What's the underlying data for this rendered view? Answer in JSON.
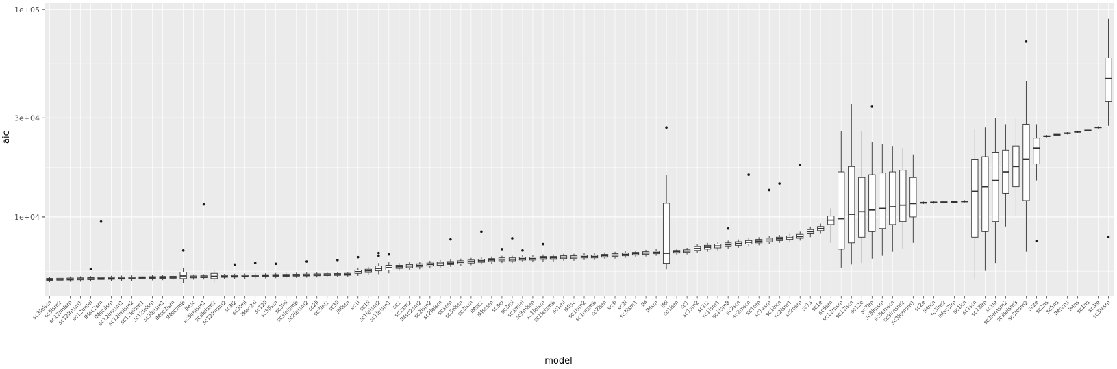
{
  "colors": {
    "panel_bg": "#EBEBEB",
    "grid": "#FFFFFF",
    "box_stroke": "#333333",
    "box_fill": "#FFFFFF",
    "outlier": "#1A1A1A",
    "tick_text": "#4D4D4D",
    "tick_mark": "#333333"
  },
  "chart_data": {
    "type": "boxplot",
    "title": "",
    "xlabel": "model",
    "ylabel": "aic",
    "yscale": "log",
    "ylim": [
      4140,
      107000
    ],
    "legend": "none",
    "grid": "on",
    "yticks": [
      {
        "value": 10000,
        "label": "1e+04"
      },
      {
        "value": 30000,
        "label": "3e+04"
      },
      {
        "value": 100000,
        "label": "1e+05"
      }
    ],
    "y_minor": [
      5477,
      17321,
      54772
    ],
    "box_format": [
      "label",
      "whisker_low",
      "q1",
      "median",
      "q3",
      "whisker_high",
      "outliers"
    ],
    "boxes": [
      [
        "sc3lelsm",
        4850,
        4950,
        5000,
        5060,
        5150,
        []
      ],
      [
        "sc3lsm2",
        4860,
        4960,
        5010,
        5070,
        5160,
        []
      ],
      [
        "sc12lmlsm",
        4870,
        4970,
        5020,
        5080,
        5170,
        []
      ],
      [
        "sc12lmsm1",
        4880,
        4980,
        5030,
        5090,
        5180,
        []
      ],
      [
        "sc12lmlel",
        4890,
        4990,
        5040,
        5100,
        5190,
        [
          5600
        ]
      ],
      [
        "lMsc2sm",
        4900,
        5000,
        5050,
        5110,
        5200,
        [
          9500
        ]
      ],
      [
        "lMsc3sm",
        4910,
        5010,
        5060,
        5120,
        5210,
        []
      ],
      [
        "sc12lmlsm1",
        4920,
        5020,
        5070,
        5130,
        5220,
        []
      ],
      [
        "sc12lmlsm2",
        4930,
        5030,
        5080,
        5140,
        5230,
        []
      ],
      [
        "sc12lelsm1",
        4940,
        5040,
        5090,
        5150,
        5240,
        []
      ],
      [
        "sc12lelsm",
        4950,
        5050,
        5100,
        5160,
        5250,
        []
      ],
      [
        "sc3lelsm1",
        4960,
        5060,
        5110,
        5170,
        5260,
        []
      ],
      [
        "lMsc3lsm",
        4970,
        5070,
        5120,
        5180,
        5270,
        []
      ],
      [
        "lMscsmB",
        4800,
        5050,
        5200,
        5420,
        5700,
        [
          6900
        ]
      ],
      [
        "lMsc",
        4990,
        5090,
        5140,
        5200,
        5290,
        []
      ],
      [
        "sc3lmlsm1",
        5000,
        5100,
        5150,
        5210,
        5300,
        [
          11500
        ]
      ],
      [
        "sc3lelsm2",
        4850,
        5050,
        5180,
        5350,
        5550,
        []
      ],
      [
        "sc12lmsm2",
        5020,
        5120,
        5170,
        5230,
        5320,
        []
      ],
      [
        "sc3l2",
        5030,
        5130,
        5180,
        5240,
        5330,
        [
          5900
        ]
      ],
      [
        "sc3lml",
        5040,
        5140,
        5190,
        5250,
        5340,
        []
      ],
      [
        "lMsc2sl",
        5050,
        5150,
        5200,
        5260,
        5350,
        [
          6000
        ]
      ],
      [
        "sc12ll",
        5060,
        5160,
        5210,
        5270,
        5360,
        []
      ],
      [
        "sc3lfsm",
        5070,
        5170,
        5220,
        5280,
        5370,
        [
          5950
        ]
      ],
      [
        "sc3lel",
        5080,
        5180,
        5230,
        5290,
        5380,
        []
      ],
      [
        "sc3lelsmB",
        5090,
        5190,
        5240,
        5300,
        5390,
        []
      ],
      [
        "sc2lelsm2",
        5100,
        5200,
        5250,
        5310,
        5400,
        [
          6100
        ]
      ],
      [
        "sc2ll",
        5110,
        5210,
        5260,
        5320,
        5410,
        []
      ],
      [
        "sc3lel2",
        5120,
        5220,
        5270,
        5330,
        5420,
        []
      ],
      [
        "sc3ll",
        5130,
        5230,
        5280,
        5340,
        5430,
        [
          6200
        ]
      ],
      [
        "lMlsm",
        5140,
        5240,
        5290,
        5350,
        5440,
        []
      ],
      [
        "sc1l",
        5200,
        5350,
        5450,
        5550,
        5700,
        [
          6400
        ]
      ],
      [
        "sc1ll",
        5250,
        5400,
        5500,
        5600,
        5750,
        []
      ],
      [
        "sc1lelsm2",
        5300,
        5500,
        5650,
        5800,
        6000,
        [
          6500,
          6700
        ]
      ],
      [
        "sc1lelsm1",
        5350,
        5550,
        5700,
        5850,
        6050,
        [
          6600
        ]
      ],
      [
        "sc2",
        5500,
        5650,
        5750,
        5850,
        6000,
        []
      ],
      [
        "sc2sm2",
        5550,
        5700,
        5800,
        5900,
        6050,
        []
      ],
      [
        "lMsc2sm2",
        5600,
        5750,
        5850,
        5950,
        6100,
        []
      ],
      [
        "sc2lsm2",
        5650,
        5800,
        5900,
        6000,
        6150,
        []
      ],
      [
        "sc2lelsm",
        5700,
        5850,
        5950,
        6050,
        6200,
        []
      ],
      [
        "sc3em",
        5750,
        5900,
        6000,
        6100,
        6250,
        [
          7800
        ]
      ],
      [
        "sc3elsm",
        5800,
        5950,
        6050,
        6150,
        6300,
        []
      ],
      [
        "sc3lsm",
        5850,
        6000,
        6100,
        6200,
        6350,
        []
      ],
      [
        "lMsc2",
        5900,
        6050,
        6150,
        6250,
        6400,
        [
          8500
        ]
      ],
      [
        "lMscsm",
        5950,
        6100,
        6200,
        6300,
        6450,
        []
      ],
      [
        "sc3el",
        6000,
        6150,
        6250,
        6350,
        6500,
        [
          7000
        ]
      ],
      [
        "sc3ml",
        6000,
        6150,
        6250,
        6350,
        6500,
        [
          7900
        ]
      ],
      [
        "sc3mlel",
        6050,
        6200,
        6300,
        6400,
        6550,
        [
          6900
        ]
      ],
      [
        "sc3mlsm",
        6050,
        6200,
        6300,
        6400,
        6550,
        []
      ],
      [
        "sc1lelsm",
        6100,
        6250,
        6350,
        6450,
        6600,
        [
          7400
        ]
      ],
      [
        "sc1lelsmB",
        6100,
        6250,
        6350,
        6450,
        6600,
        []
      ],
      [
        "sc1ml",
        6150,
        6300,
        6400,
        6500,
        6650,
        []
      ],
      [
        "lMlsc",
        6150,
        6300,
        6400,
        6500,
        6650,
        []
      ],
      [
        "sc1lsm2",
        6200,
        6350,
        6450,
        6550,
        6700,
        []
      ],
      [
        "sc1msmB",
        6200,
        6350,
        6450,
        6550,
        6700,
        []
      ],
      [
        "sc2lsm",
        6250,
        6400,
        6500,
        6600,
        6750,
        []
      ],
      [
        "sc3l",
        6300,
        6450,
        6550,
        6650,
        6800,
        []
      ],
      [
        "sc2l",
        6350,
        6500,
        6600,
        6700,
        6850,
        []
      ],
      [
        "sc3lsm1",
        6400,
        6550,
        6650,
        6750,
        6900,
        []
      ],
      [
        "lM",
        6450,
        6600,
        6700,
        6800,
        6950,
        []
      ],
      [
        "lMsm",
        6500,
        6650,
        6750,
        6850,
        7000,
        []
      ],
      [
        "lMl",
        5600,
        5980,
        6680,
        11650,
        16000,
        [
          27000
        ]
      ],
      [
        "sc1lsm",
        6550,
        6700,
        6800,
        6900,
        7050,
        []
      ],
      [
        "sc1",
        6600,
        6750,
        6850,
        6950,
        7100,
        []
      ],
      [
        "sc1sm2",
        6700,
        6900,
        7050,
        7200,
        7400,
        []
      ],
      [
        "sc1l2",
        6800,
        7000,
        7150,
        7300,
        7500,
        []
      ],
      [
        "sc1lsm1",
        6900,
        7100,
        7250,
        7400,
        7600,
        []
      ],
      [
        "sc1lsmB",
        7000,
        7200,
        7350,
        7500,
        7700,
        [
          8800
        ]
      ],
      [
        "sc2sm",
        7100,
        7300,
        7450,
        7600,
        7800,
        []
      ],
      [
        "sc2msm",
        7200,
        7400,
        7550,
        7700,
        7900,
        [
          16000
        ]
      ],
      [
        "sc1em",
        7300,
        7500,
        7650,
        7800,
        8000,
        []
      ],
      [
        "sc1esm",
        7400,
        7600,
        7750,
        7900,
        8100,
        [
          13500
        ]
      ],
      [
        "sc1lnm",
        7500,
        7700,
        7850,
        8000,
        8200,
        [
          14500
        ]
      ],
      [
        "sc2lsm1",
        7600,
        7800,
        7950,
        8100,
        8300,
        []
      ],
      [
        "sc2esm",
        7700,
        7900,
        8050,
        8250,
        8500,
        [
          17800
        ]
      ],
      [
        "sc1s",
        8000,
        8300,
        8500,
        8700,
        9000,
        []
      ],
      [
        "sc1e",
        8300,
        8600,
        8800,
        9000,
        9300,
        []
      ],
      [
        "sc5sm",
        7500,
        9200,
        9650,
        10100,
        11000,
        []
      ],
      [
        "sc12msm",
        5700,
        7000,
        9800,
        16500,
        26000,
        []
      ],
      [
        "sc12lsm",
        5900,
        7500,
        10300,
        17500,
        35000,
        []
      ],
      [
        "sc12e",
        6000,
        8000,
        10600,
        15500,
        26000,
        []
      ],
      [
        "sc3lm",
        6300,
        8500,
        10800,
        16000,
        23000,
        [
          34000
        ]
      ],
      [
        "sc3lmsm",
        6500,
        8800,
        11000,
        16300,
        22500,
        []
      ],
      [
        "sc3emsm",
        6800,
        9200,
        11200,
        16500,
        22000,
        []
      ],
      [
        "sc3lmsm2",
        7000,
        9500,
        11400,
        16800,
        21500,
        []
      ],
      [
        "sc3lemsm1",
        7500,
        10000,
        11600,
        15500,
        20000,
        []
      ],
      [
        "sc2e",
        11550,
        11650,
        11700,
        11780,
        11880,
        []
      ],
      [
        "lMnm",
        11600,
        11680,
        11750,
        11820,
        11900,
        []
      ],
      [
        "sc3lm2",
        11650,
        11720,
        11780,
        11850,
        11950,
        []
      ],
      [
        "lMsc3lm",
        11700,
        11760,
        11820,
        11900,
        12000,
        []
      ],
      [
        "sc1lm",
        11750,
        11820,
        11880,
        11950,
        12050,
        []
      ],
      [
        "sc1sm",
        5000,
        8000,
        13300,
        19000,
        26500,
        []
      ],
      [
        "sc12lm",
        5500,
        8500,
        14000,
        19500,
        27000,
        []
      ],
      [
        "sc1le",
        6000,
        9500,
        15000,
        20500,
        30000,
        []
      ],
      [
        "sc3lemsm2",
        9000,
        13000,
        16500,
        21000,
        28000,
        []
      ],
      [
        "sc3lelsm3",
        10000,
        14000,
        17500,
        22000,
        30000,
        []
      ],
      [
        "sc3lesm2",
        6800,
        12000,
        19000,
        28000,
        45000,
        [
          70000
        ]
      ],
      [
        "scze",
        15000,
        18000,
        21500,
        24000,
        28000,
        [
          7650
        ]
      ],
      [
        "sc2ns",
        24200,
        24400,
        24500,
        24650,
        24850,
        []
      ],
      [
        "sc5ns",
        24600,
        24800,
        24900,
        25050,
        25250,
        []
      ],
      [
        "lMscns",
        25000,
        25200,
        25300,
        25450,
        25650,
        []
      ],
      [
        "lMns",
        25400,
        25600,
        25700,
        25850,
        26050,
        []
      ],
      [
        "sc1ns",
        25800,
        26000,
        26100,
        26250,
        26450,
        []
      ],
      [
        "sc3le",
        26700,
        26900,
        27000,
        27150,
        27350,
        []
      ],
      [
        "sc3lesm",
        27500,
        36000,
        46500,
        58500,
        90000,
        [
          8000
        ]
      ]
    ]
  }
}
